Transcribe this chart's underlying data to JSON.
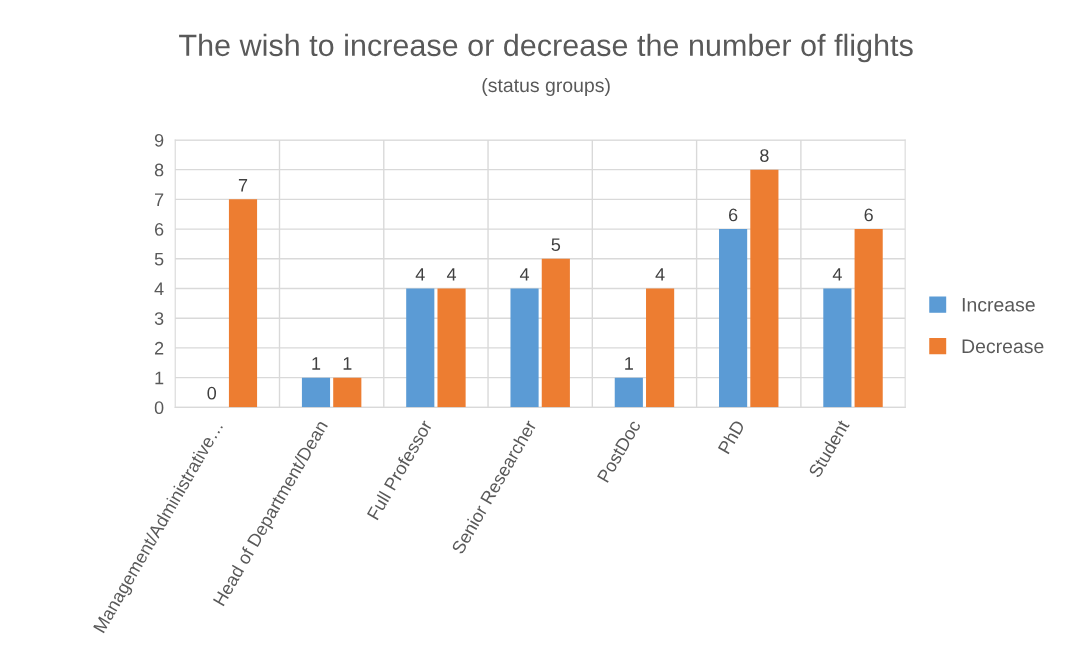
{
  "chart_data": {
    "type": "bar",
    "title": "The wish to increase or decrease the number of flights",
    "subtitle": "(status groups)",
    "categories": [
      "Management/Administrative…",
      "Head of Department/Dean",
      "Full Professor",
      "Senior Researcher",
      "PostDoc",
      "PhD",
      "Student"
    ],
    "series": [
      {
        "name": "Increase",
        "color": "#5b9bd5",
        "values": [
          0,
          1,
          4,
          4,
          1,
          6,
          4
        ]
      },
      {
        "name": "Decrease",
        "color": "#ed7d31",
        "values": [
          7,
          1,
          4,
          5,
          4,
          8,
          6
        ]
      }
    ],
    "ylim": [
      0,
      9
    ],
    "yticks": [
      0,
      1,
      2,
      3,
      4,
      5,
      6,
      7,
      8,
      9
    ],
    "grid": true,
    "legend": "right",
    "data_labels": true
  }
}
